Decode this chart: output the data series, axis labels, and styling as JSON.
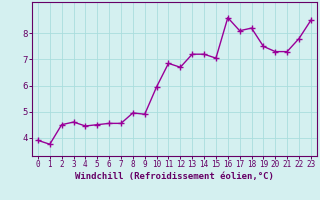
{
  "x": [
    0,
    1,
    2,
    3,
    4,
    5,
    6,
    7,
    8,
    9,
    10,
    11,
    12,
    13,
    14,
    15,
    16,
    17,
    18,
    19,
    20,
    21,
    22,
    23
  ],
  "y": [
    3.9,
    3.75,
    4.5,
    4.6,
    4.45,
    4.5,
    4.55,
    4.55,
    4.95,
    4.9,
    5.95,
    6.85,
    6.7,
    7.2,
    7.2,
    7.05,
    8.6,
    8.1,
    8.2,
    7.5,
    7.3,
    7.3,
    7.8,
    8.5
  ],
  "line_color": "#990099",
  "marker": "+",
  "marker_size": 4,
  "background_color": "#d4f0f0",
  "grid_color": "#aadddd",
  "axis_color": "#660066",
  "xlabel": "Windchill (Refroidissement éolien,°C)",
  "xlim": [
    -0.5,
    23.5
  ],
  "ylim": [
    3.3,
    9.2
  ],
  "yticks": [
    4,
    5,
    6,
    7,
    8
  ],
  "xticks": [
    0,
    1,
    2,
    3,
    4,
    5,
    6,
    7,
    8,
    9,
    10,
    11,
    12,
    13,
    14,
    15,
    16,
    17,
    18,
    19,
    20,
    21,
    22,
    23
  ],
  "line_width": 1.0,
  "tick_fontsize": 5.5,
  "label_fontsize": 6.5,
  "marker_edge_width": 1.0
}
